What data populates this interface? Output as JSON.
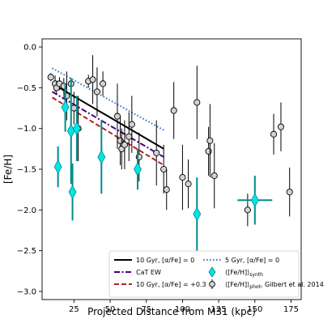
{
  "chart_data": {
    "type": "scatter",
    "title": "",
    "xlabel": "Projected Distance from M31 (kpc)",
    "ylabel": "[Fe/H]",
    "xlim": [
      3,
      182
    ],
    "ylim": [
      -3.1,
      0.1
    ],
    "xticks": [
      25,
      50,
      75,
      100,
      125,
      150,
      175
    ],
    "xtick_labels": [
      "25",
      "50",
      "75",
      "100",
      "125",
      "150",
      "175"
    ],
    "yticks": [
      0.0,
      -0.5,
      -1.0,
      -1.5,
      -2.0,
      -2.5,
      -3.0
    ],
    "ytick_labels": [
      "0.0",
      "−0.5",
      "−1.0",
      "−1.5",
      "−2.0",
      "−2.5",
      "−3.0"
    ],
    "grid": false,
    "legend_position": "lower-center",
    "lines": [
      {
        "key": "10gyr-alpha0",
        "color": "#000000",
        "dash": "solid",
        "x": [
          10,
          87
        ],
        "y": [
          -0.45,
          -1.25
        ]
      },
      {
        "key": "cat-ew",
        "color": "#4b0082",
        "dash": "dashdot",
        "x": [
          10,
          87
        ],
        "y": [
          -0.55,
          -1.35
        ]
      },
      {
        "key": "10gyr-alpha03",
        "color": "#b22222",
        "dash": "dashed",
        "x": [
          10,
          87
        ],
        "y": [
          -0.62,
          -1.45
        ]
      },
      {
        "key": "5gyr-alpha0",
        "color": "#4a7fcf",
        "dash": "dotted",
        "x": [
          10,
          87
        ],
        "y": [
          -0.26,
          -1.02
        ]
      }
    ],
    "phot_points": [
      {
        "x": 9,
        "y": -0.37,
        "yerr": 0.05
      },
      {
        "x": 12,
        "y": -0.45,
        "yerr": 0.1
      },
      {
        "x": 13,
        "y": -0.5,
        "yerr": 0.08
      },
      {
        "x": 15,
        "y": -0.45,
        "yerr": 0.08
      },
      {
        "x": 18,
        "y": -0.48,
        "yerr": 0.1
      },
      {
        "x": 20,
        "y": -0.6,
        "yerr": 0.3
      },
      {
        "x": 23,
        "y": -0.45,
        "yerr": 0.05
      },
      {
        "x": 25,
        "y": -0.75,
        "yerr": 0.2
      },
      {
        "x": 28,
        "y": -1.0,
        "yerr": 0.4
      },
      {
        "x": 35,
        "y": -0.42,
        "yerr": 0.08
      },
      {
        "x": 38,
        "y": -0.4,
        "yerr": 0.3
      },
      {
        "x": 41,
        "y": -0.55,
        "yerr": 0.3
      },
      {
        "x": 45,
        "y": -0.45,
        "yerr": 0.15
      },
      {
        "x": 55,
        "y": -0.85,
        "yerr": 0.4
      },
      {
        "x": 57,
        "y": -1.15,
        "yerr": 0.3
      },
      {
        "x": 58,
        "y": -1.25,
        "yerr": 0.25
      },
      {
        "x": 60,
        "y": -1.2,
        "yerr": 0.3
      },
      {
        "x": 63,
        "y": -1.1,
        "yerr": 0.3
      },
      {
        "x": 65,
        "y": -0.95,
        "yerr": 0.35
      },
      {
        "x": 70,
        "y": -1.35,
        "yerr": 0.3
      },
      {
        "x": 82,
        "y": -1.3,
        "yerr": 0.4
      },
      {
        "x": 87,
        "y": -1.5,
        "yerr": 0.3
      },
      {
        "x": 89,
        "y": -1.75,
        "yerr": 0.25
      },
      {
        "x": 94,
        "y": -0.78,
        "yerr": 0.35
      },
      {
        "x": 100,
        "y": -1.6,
        "yerr": 0.4
      },
      {
        "x": 104,
        "y": -1.68,
        "yerr": 0.3
      },
      {
        "x": 110,
        "y": -0.68,
        "yerr": 0.45
      },
      {
        "x": 118,
        "y": -1.28,
        "yerr": 0.3
      },
      {
        "x": 119,
        "y": -1.15,
        "yerr": 0.45
      },
      {
        "x": 122,
        "y": -1.58,
        "yerr": 0.4
      },
      {
        "x": 145,
        "y": -2.0,
        "yerr": 0.2
      },
      {
        "x": 163,
        "y": -1.07,
        "yerr": 0.25
      },
      {
        "x": 168,
        "y": -0.98,
        "yerr": 0.3
      },
      {
        "x": 174,
        "y": -1.78,
        "yerr": 0.3
      }
    ],
    "synth_points": [
      {
        "x": 14,
        "y": -1.47,
        "yerr": 0.25,
        "xerr": 0
      },
      {
        "x": 19,
        "y": -0.74,
        "yerr": 0.3,
        "xerr": 0
      },
      {
        "x": 23,
        "y": -1.03,
        "yerr": 0.65,
        "xerr": 0
      },
      {
        "x": 24,
        "y": -1.78,
        "yerr": 0.35,
        "xerr": 0
      },
      {
        "x": 27,
        "y": -1.0,
        "yerr": 0.4,
        "xerr": 0
      },
      {
        "x": 44,
        "y": -1.35,
        "yerr": 0.45,
        "xerr": 0
      },
      {
        "x": 69,
        "y": -1.5,
        "yerr": 0.25,
        "xerr": 0
      },
      {
        "x": 110,
        "y": -2.05,
        "yerr": 0.45,
        "xerr": 0
      },
      {
        "x": 150,
        "y": -1.88,
        "yerr": 0.3,
        "xerr": 12
      }
    ],
    "legend": {
      "col1": [
        {
          "key": "10gyr-alpha0",
          "label": "10 Gyr, [α/Fe] = 0"
        },
        {
          "key": "cat-ew",
          "label": "CaT EW"
        },
        {
          "key": "10gyr-alpha03",
          "label": "10 Gyr, [α/Fe] = +0.3"
        }
      ],
      "col2": [
        {
          "key": "5gyr-alpha0",
          "label": "5 Gyr, [α/Fe] = 0"
        },
        {
          "key": "synth",
          "label_main": "⟨[Fe/H]⟩",
          "label_sub": "synth"
        },
        {
          "key": "phot",
          "label_main": "⟨[Fe/H]⟩",
          "label_sub": "phot",
          "label_tail": ", Gilbert et al. 2014"
        }
      ]
    },
    "colors": {
      "synth_fill": "#00e5e5",
      "synth_edge": "#008b8b",
      "synth_err": "#008b8b",
      "phot_fill": "#d3d3d3",
      "phot_edge": "#000000"
    }
  }
}
